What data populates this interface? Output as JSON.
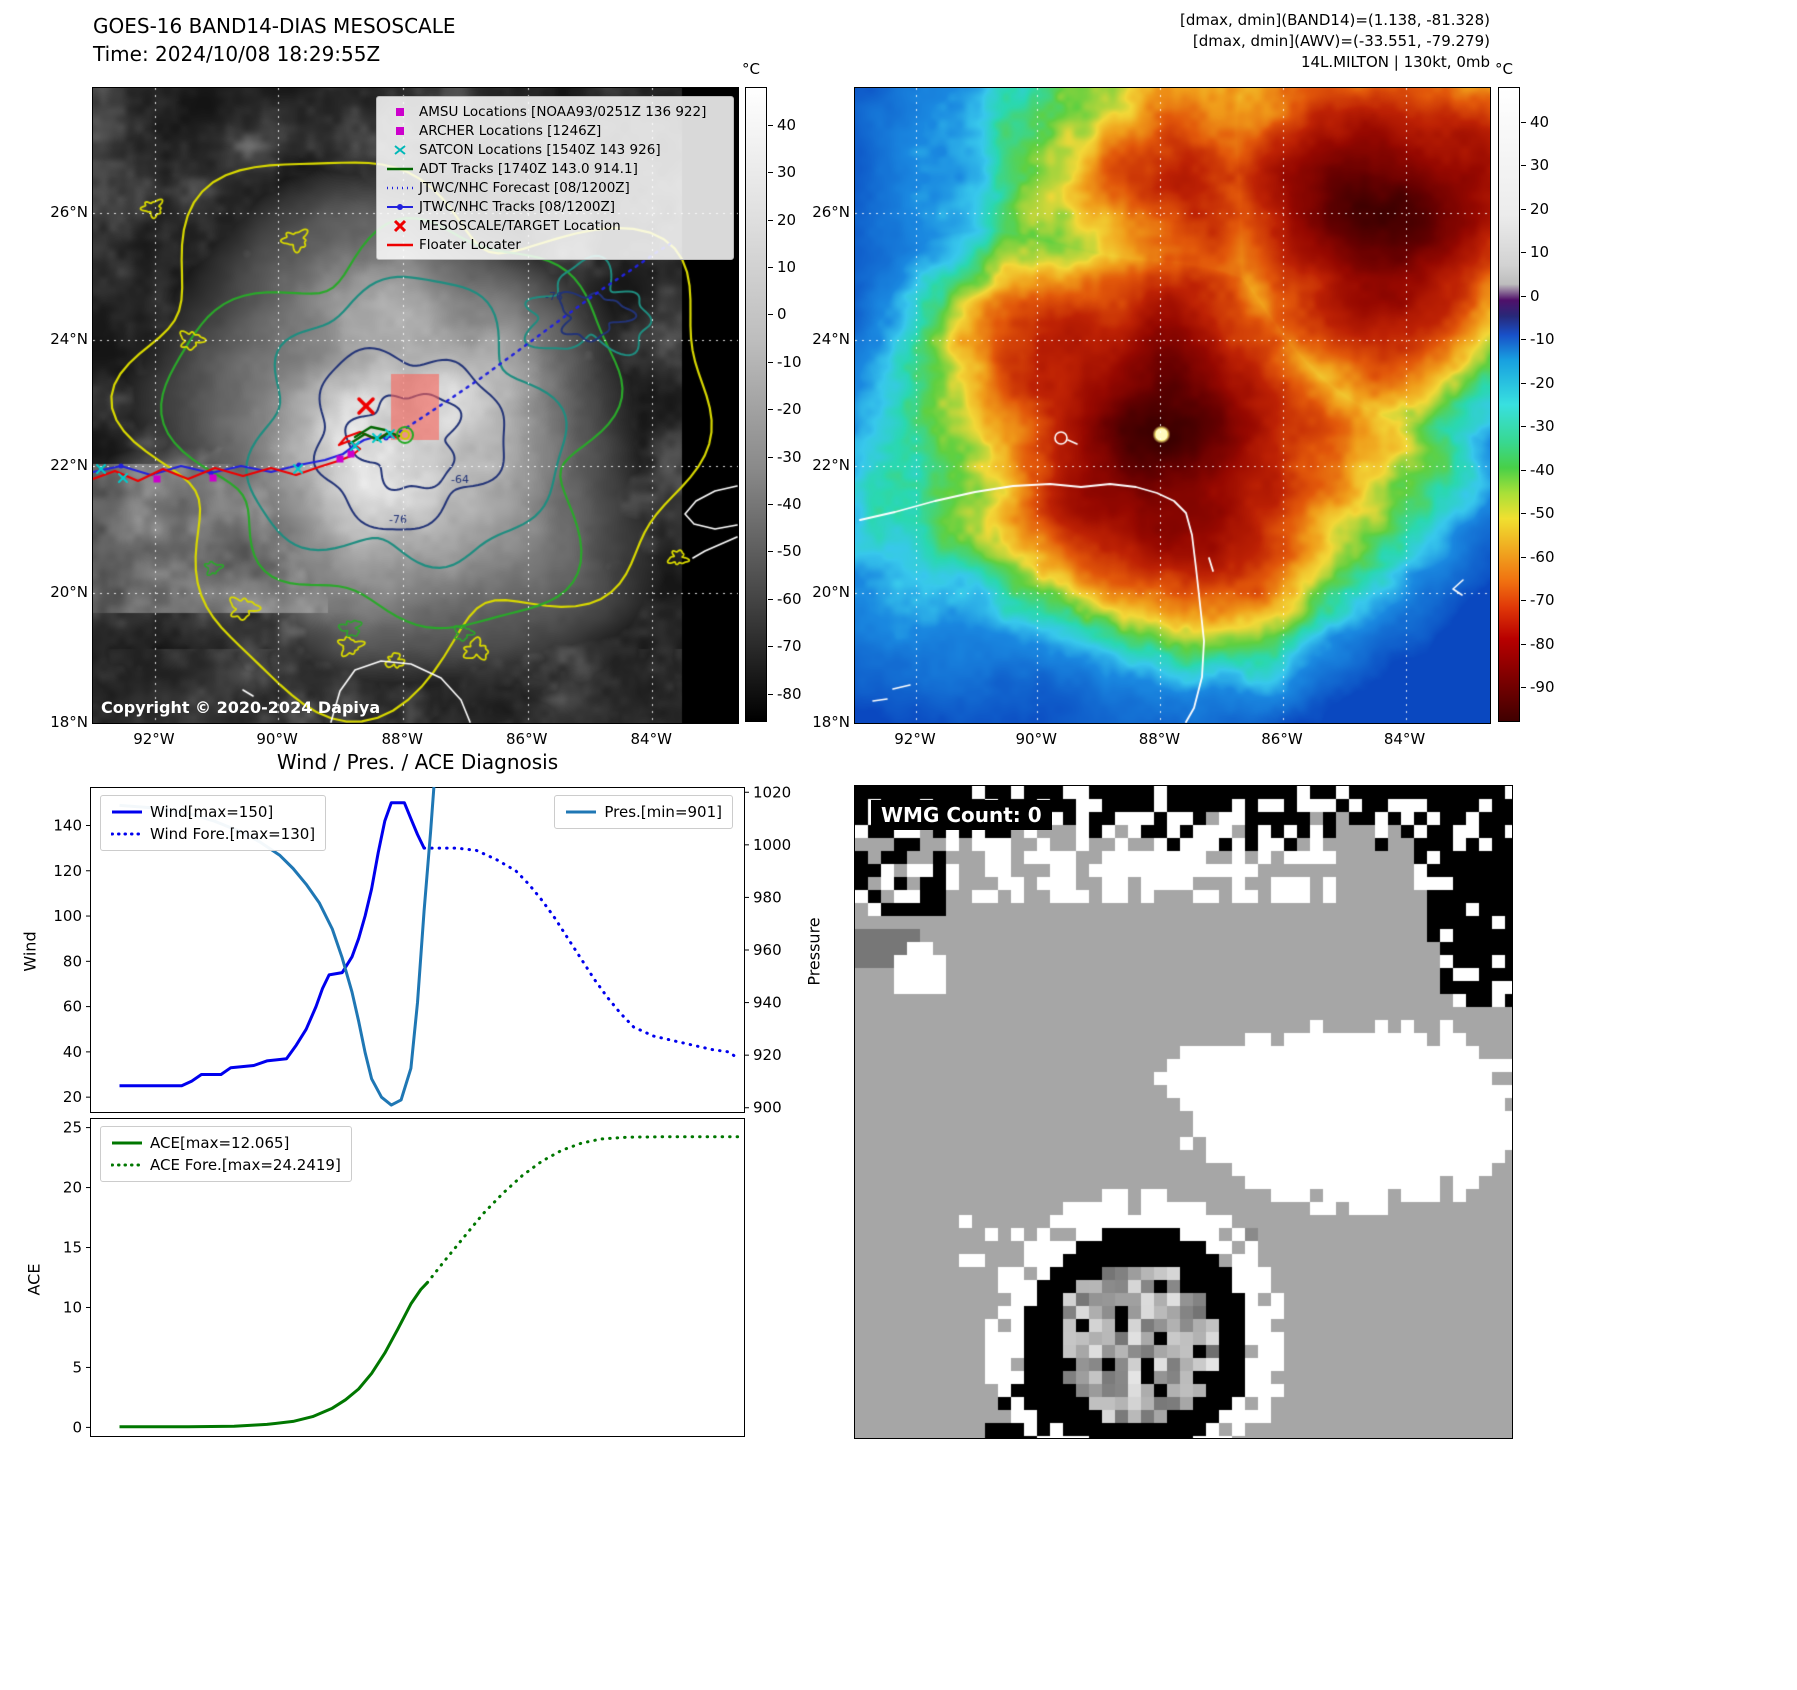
{
  "map_left": {
    "title": "GOES-16 BAND14-DIAS MESOSCALE",
    "subtitle": "Time: 2024/10/08 18:29:55Z",
    "copyright": "Copyright © 2020-2024 Dapiya",
    "colorbar": {
      "unit": "°C",
      "ticks": [
        40,
        30,
        20,
        10,
        0,
        -10,
        -20,
        -30,
        -40,
        -50,
        -60,
        -70,
        -80
      ]
    },
    "lat_ticks": [
      "26°N",
      "24°N",
      "22°N",
      "20°N",
      "18°N"
    ],
    "lon_ticks": [
      "92°W",
      "90°W",
      "88°W",
      "86°W",
      "84°W"
    ],
    "contour_labels": [
      "-76",
      "-64",
      "-76"
    ],
    "legend": [
      {
        "label": "AMSU Locations [NOAA93/0251Z 136 922]",
        "marker": "square",
        "color": "#cc00cc"
      },
      {
        "label": "ARCHER Locations [1246Z]",
        "marker": "square",
        "color": "#cc00cc"
      },
      {
        "label": "SATCON Locations [1540Z 143 926]",
        "marker": "x",
        "color": "#00b8b8"
      },
      {
        "label": "ADT Tracks [1740Z 143.0 914.1]",
        "marker": "line",
        "color": "#006600"
      },
      {
        "label": "JTWC/NHC Forecast [08/1200Z]",
        "marker": "dotted",
        "color": "#2222dd"
      },
      {
        "label": "JTWC/NHC Tracks [08/1200Z]",
        "marker": "line-dot",
        "color": "#2222dd"
      },
      {
        "label": "MESOSCALE/TARGET Location",
        "marker": "X",
        "color": "#ee0000"
      },
      {
        "label": "Floater Locater",
        "marker": "line",
        "color": "#ee0000"
      }
    ]
  },
  "map_right": {
    "header_lines": [
      "[dmax, dmin](BAND14)=(1.138, -81.328)",
      "[dmax, dmin](AWV)=(-33.551, -79.279)",
      "14L.MILTON | 130kt, 0mb"
    ],
    "colorbar": {
      "unit": "°C",
      "ticks": [
        40,
        30,
        20,
        10,
        0,
        -10,
        -20,
        -30,
        -40,
        -50,
        -60,
        -70,
        -80,
        -90
      ]
    },
    "lat_ticks": [
      "26°N",
      "24°N",
      "22°N",
      "20°N",
      "18°N"
    ],
    "lon_ticks": [
      "92°W",
      "90°W",
      "88°W",
      "86°W",
      "84°W"
    ]
  },
  "wmg": {
    "label": "WMG Count: 0"
  },
  "chart_data": {
    "title": "Wind / Pres. / ACE Diagnosis",
    "charts": [
      {
        "type": "line",
        "left_axis": {
          "label": "Wind",
          "ticks": [
            20,
            40,
            60,
            80,
            100,
            120,
            140
          ],
          "lim": [
            13,
            157
          ]
        },
        "right_axis": {
          "label": "Pressure",
          "ticks": [
            900,
            920,
            940,
            960,
            980,
            1000,
            1020
          ],
          "lim": [
            898,
            1022
          ]
        },
        "x_lim": [
          0,
          1
        ],
        "series": [
          {
            "name": "Wind[max=150]",
            "color": "#0000ee",
            "style": "solid",
            "axis": "left",
            "points": [
              [
                0.045,
                25
              ],
              [
                0.14,
                25
              ],
              [
                0.155,
                27
              ],
              [
                0.17,
                30
              ],
              [
                0.2,
                30
              ],
              [
                0.215,
                33
              ],
              [
                0.25,
                34
              ],
              [
                0.27,
                36
              ],
              [
                0.3,
                37
              ],
              [
                0.315,
                43
              ],
              [
                0.33,
                50
              ],
              [
                0.345,
                60
              ],
              [
                0.355,
                68
              ],
              [
                0.365,
                74
              ],
              [
                0.385,
                75
              ],
              [
                0.4,
                82
              ],
              [
                0.41,
                90
              ],
              [
                0.42,
                100
              ],
              [
                0.43,
                112
              ],
              [
                0.44,
                128
              ],
              [
                0.45,
                142
              ],
              [
                0.46,
                150
              ],
              [
                0.48,
                150
              ],
              [
                0.49,
                143
              ],
              [
                0.5,
                136
              ],
              [
                0.51,
                130
              ]
            ]
          },
          {
            "name": "Wind Fore.[max=130]",
            "color": "#0000ee",
            "style": "dotted",
            "axis": "left",
            "points": [
              [
                0.51,
                130
              ],
              [
                0.56,
                130
              ],
              [
                0.59,
                129
              ],
              [
                0.62,
                125
              ],
              [
                0.65,
                120
              ],
              [
                0.67,
                114
              ],
              [
                0.69,
                107
              ],
              [
                0.71,
                99
              ],
              [
                0.73,
                90
              ],
              [
                0.75,
                81
              ],
              [
                0.77,
                72
              ],
              [
                0.79,
                64
              ],
              [
                0.81,
                57
              ],
              [
                0.83,
                51
              ],
              [
                0.86,
                47
              ],
              [
                0.89,
                45
              ],
              [
                0.92,
                43
              ],
              [
                0.95,
                41
              ],
              [
                0.975,
                40
              ],
              [
                0.99,
                37
              ]
            ]
          },
          {
            "name": "Pres.[min=901]",
            "color": "#1f77b4",
            "style": "solid",
            "axis": "right",
            "points": [
              [
                0.045,
                1015
              ],
              [
                0.1,
                1014
              ],
              [
                0.15,
                1012
              ],
              [
                0.19,
                1009
              ],
              [
                0.23,
                1005
              ],
              [
                0.26,
                1001
              ],
              [
                0.29,
                996
              ],
              [
                0.31,
                991
              ],
              [
                0.33,
                985
              ],
              [
                0.35,
                978
              ],
              [
                0.37,
                968
              ],
              [
                0.385,
                957
              ],
              [
                0.4,
                944
              ],
              [
                0.41,
                933
              ],
              [
                0.42,
                921
              ],
              [
                0.43,
                911
              ],
              [
                0.445,
                904
              ],
              [
                0.46,
                901
              ],
              [
                0.475,
                903
              ],
              [
                0.49,
                915
              ],
              [
                0.5,
                940
              ],
              [
                0.51,
                975
              ],
              [
                0.52,
                1005
              ],
              [
                0.525,
                1022
              ]
            ]
          }
        ]
      },
      {
        "type": "line",
        "left_axis": {
          "label": "ACE",
          "ticks": [
            0,
            5,
            10,
            15,
            20,
            25
          ],
          "lim": [
            -0.8,
            25.8
          ]
        },
        "x_lim": [
          0,
          1
        ],
        "series": [
          {
            "name": "ACE[max=12.065]",
            "color": "#007700",
            "style": "solid",
            "axis": "left",
            "points": [
              [
                0.045,
                0.05
              ],
              [
                0.15,
                0.05
              ],
              [
                0.22,
                0.1
              ],
              [
                0.27,
                0.25
              ],
              [
                0.31,
                0.5
              ],
              [
                0.34,
                0.9
              ],
              [
                0.37,
                1.6
              ],
              [
                0.39,
                2.3
              ],
              [
                0.41,
                3.2
              ],
              [
                0.43,
                4.5
              ],
              [
                0.45,
                6.2
              ],
              [
                0.47,
                8.2
              ],
              [
                0.49,
                10.3
              ],
              [
                0.505,
                11.5
              ],
              [
                0.515,
                12.065
              ]
            ]
          },
          {
            "name": "ACE Fore.[max=24.2419]",
            "color": "#007700",
            "style": "dotted",
            "axis": "left",
            "points": [
              [
                0.515,
                12.065
              ],
              [
                0.54,
                13.8
              ],
              [
                0.57,
                15.8
              ],
              [
                0.6,
                17.8
              ],
              [
                0.63,
                19.5
              ],
              [
                0.66,
                21.0
              ],
              [
                0.69,
                22.2
              ],
              [
                0.72,
                23.1
              ],
              [
                0.75,
                23.7
              ],
              [
                0.78,
                24.05
              ],
              [
                0.82,
                24.2
              ],
              [
                0.88,
                24.24
              ],
              [
                0.99,
                24.24
              ]
            ]
          }
        ]
      }
    ]
  }
}
